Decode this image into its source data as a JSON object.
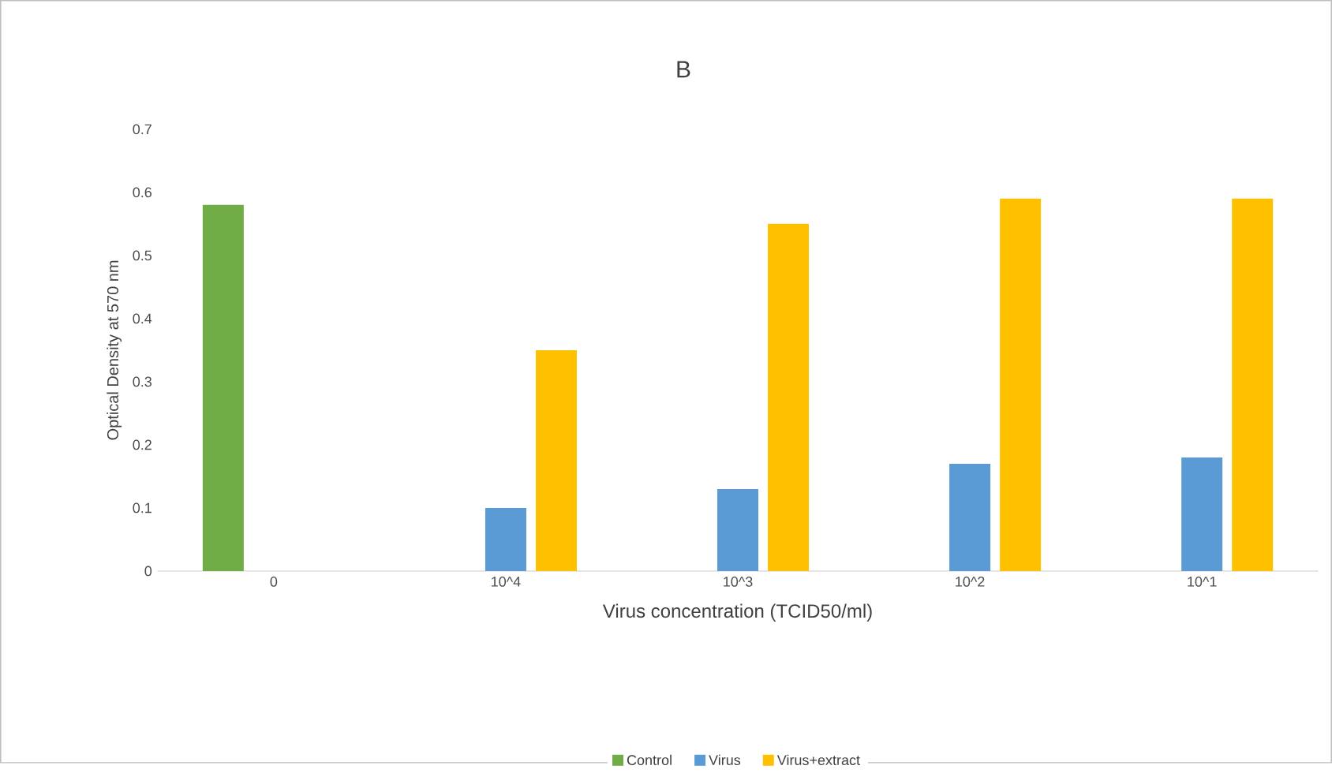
{
  "chart_data": {
    "type": "bar",
    "title": "B",
    "xlabel": "Virus concentration (TCID50/ml)",
    "ylabel": "Optical Density at 570 nm",
    "categories": [
      "0",
      "10^4",
      "10^3",
      "10^2",
      "10^1"
    ],
    "series": [
      {
        "name": "Control",
        "color": "#70ad47",
        "values": [
          0.58,
          null,
          null,
          null,
          null
        ]
      },
      {
        "name": "Virus",
        "color": "#5b9bd5",
        "values": [
          null,
          0.1,
          0.13,
          0.17,
          0.18
        ]
      },
      {
        "name": "Virus+extract",
        "color": "#ffc000",
        "values": [
          null,
          0.35,
          0.55,
          0.59,
          0.59
        ]
      }
    ],
    "ylim": [
      0,
      0.7
    ],
    "yticks": [
      0,
      0.1,
      0.2,
      0.3,
      0.4,
      0.5,
      0.6,
      0.7
    ],
    "grid": false,
    "legend": "bottom"
  }
}
